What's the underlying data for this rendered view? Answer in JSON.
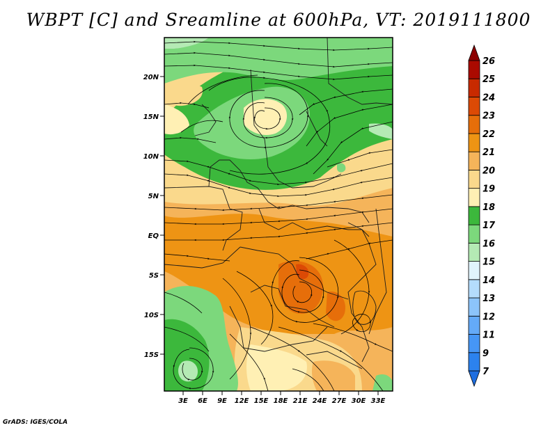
{
  "title": "WBPT [C] and Sreamline at 600hPa, VT: 2019111800",
  "credit": "GrADS: IGES/COLA",
  "map": {
    "lat_labels": [
      "20N",
      "15N",
      "10N",
      "5N",
      "EQ",
      "5S",
      "10S",
      "15S"
    ],
    "lon_labels": [
      "3E",
      "6E",
      "9E",
      "12E",
      "15E",
      "18E",
      "21E",
      "24E",
      "27E",
      "30E",
      "33E"
    ]
  },
  "colorbar": {
    "levels": [
      "7",
      "9",
      "11",
      "12",
      "13",
      "14",
      "15",
      "16",
      "17",
      "18",
      "19",
      "20",
      "21",
      "22",
      "23",
      "24",
      "25",
      "26"
    ],
    "colors": [
      "#1e6ee0",
      "#2c82ee",
      "#4696f5",
      "#64aaf8",
      "#8cc4fa",
      "#b4dcfc",
      "#e0f4fc",
      "#b4eab4",
      "#7cd87c",
      "#3cb83c",
      "#fff0b4",
      "#fad98c",
      "#f5b45a",
      "#ee9414",
      "#e66e0a",
      "#dc4a05",
      "#c82a00",
      "#aa0a00",
      "#8c0000"
    ]
  }
}
